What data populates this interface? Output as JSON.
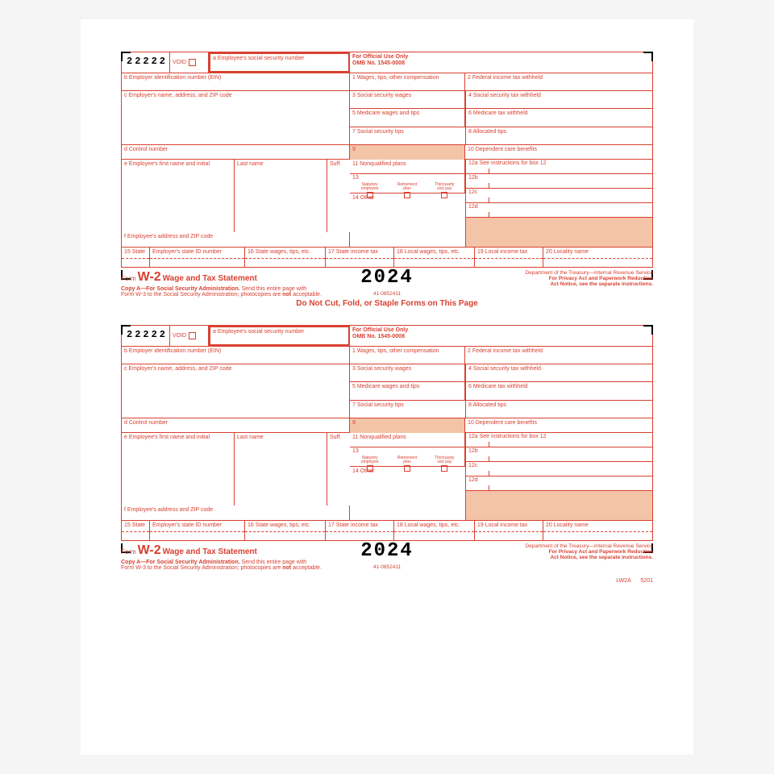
{
  "colors": {
    "red": "#d94030",
    "shade": "#f4c4a8",
    "black": "#000000"
  },
  "form": {
    "code": "22222",
    "void": "VOID",
    "a": "a  Employee's social security number",
    "official": "For Official Use Only",
    "omb": "OMB No. 1545-0008",
    "b": "b Employer identification number (EIN)",
    "box1": "1  Wages, tips, other compensation",
    "box2": "2  Federal income tax withheld",
    "c": "c Employer's name, address, and ZIP code",
    "box3": "3  Social security wages",
    "box4": "4  Social security tax withheld",
    "box5": "5  Medicare wages and tips",
    "box6": "6  Medicare tax withheld",
    "box7": "7  Social security tips",
    "box8": "8  Allocated tips",
    "d": "d Control number",
    "box9": "9",
    "box10": "10  Dependent care benefits",
    "e": "e Employee's first name and initial",
    "ln": "Last name",
    "suff": "Suff.",
    "box11": "11  Nonqualified plans",
    "box12a": "12a  See instructions for box 12",
    "box13": "13",
    "stat": "Statutory\nemployee",
    "ret": "Retirement\nplan",
    "tp": "Third-party\nsick pay",
    "box12b": "12b",
    "box14": "14  Other",
    "box12c": "12c",
    "box12d": "12d",
    "f": "f  Employee's address and ZIP code",
    "box15": "15  State",
    "ein15": "Employer's state ID number",
    "box16": "16  State wages, tips, etc.",
    "box17": "17  State income tax",
    "box18": "18  Local wages, tips, etc.",
    "box19": "19  Local income tax",
    "box20": "20  Locality name",
    "formword": "Form",
    "w2": "W-2",
    "stmt": "Wage and Tax Statement",
    "year": "2024",
    "dept": "Department of the Treasury—Internal Revenue Service",
    "privacy": "For Privacy Act and Paperwork Reduction\nAct Notice, see the separate instructions.",
    "copya": "Copy A—For Social Security Administration.",
    "send": " Send this entire page with",
    "send2": "Form W-3 to the Social Security Administration; photocopies are ",
    "notacc": "not",
    "acc2": " acceptable.",
    "catno": "41-0852411",
    "nocut": "Do Not Cut, Fold, or Staple Forms on This Page",
    "lw2a": "LW2A",
    "c5201": "5201"
  }
}
